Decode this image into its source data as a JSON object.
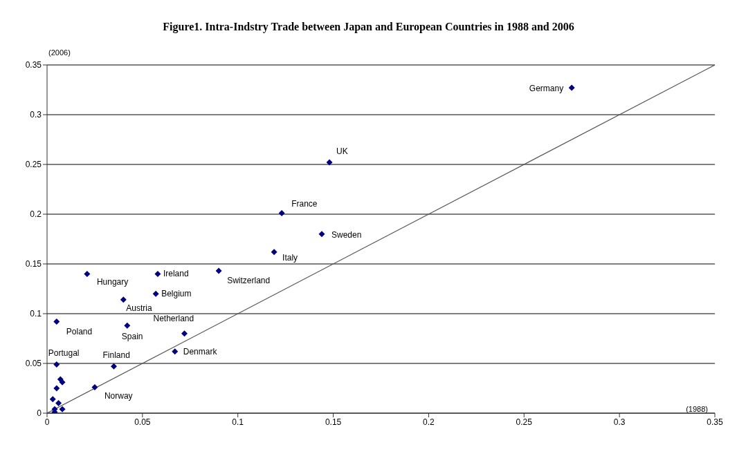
{
  "chart_data": {
    "type": "scatter",
    "title": "Figure1. Intra-Indstry Trade between Japan and European Countries in 1988 and 2006",
    "xlabel": "(1988)",
    "ylabel": "(2006)",
    "xlim": [
      0,
      0.35
    ],
    "xticks": [
      0,
      0.05,
      0.1,
      0.15,
      0.2,
      0.25,
      0.3,
      0.35
    ],
    "ylim": [
      0,
      0.35
    ],
    "yticks": [
      0,
      0.05,
      0.1,
      0.15,
      0.2,
      0.25,
      0.3,
      0.35
    ],
    "grid": "y",
    "legend": false,
    "marker": "diamond",
    "series": [
      {
        "color": "#000080",
        "x": [
          0.275,
          0.148,
          0.123,
          0.144,
          0.119,
          0.09,
          0.058,
          0.021,
          0.057,
          0.04,
          0.005,
          0.042,
          0.072,
          0.067,
          0.005,
          0.035,
          0.025,
          0.007,
          0.008,
          0.005,
          0.003,
          0.006,
          0.004,
          0.004,
          0.008
        ],
        "values": [
          0.327,
          0.252,
          0.201,
          0.18,
          0.162,
          0.143,
          0.14,
          0.14,
          0.12,
          0.114,
          0.092,
          0.088,
          0.08,
          0.062,
          0.049,
          0.047,
          0.026,
          0.034,
          0.031,
          0.025,
          0.014,
          0.01,
          0.004,
          0.001,
          0.004
        ]
      },
      {
        "type": "line",
        "color": "#555555",
        "x": [
          0,
          0.35
        ],
        "values": [
          0,
          0.35
        ],
        "marker": "none"
      }
    ],
    "annotations": [
      {
        "text": "Germany",
        "x": 0.275,
        "y": 0.327
      },
      {
        "text": "UK",
        "x": 0.148,
        "y": 0.252
      },
      {
        "text": "France",
        "x": 0.123,
        "y": 0.201
      },
      {
        "text": "Sweden",
        "x": 0.144,
        "y": 0.18
      },
      {
        "text": "Italy",
        "x": 0.119,
        "y": 0.162
      },
      {
        "text": "Switzerland",
        "x": 0.09,
        "y": 0.143
      },
      {
        "text": "Ireland",
        "x": 0.058,
        "y": 0.14
      },
      {
        "text": "Hungary",
        "x": 0.021,
        "y": 0.14
      },
      {
        "text": "Belgium",
        "x": 0.057,
        "y": 0.12
      },
      {
        "text": "Austria",
        "x": 0.04,
        "y": 0.114
      },
      {
        "text": "Poland",
        "x": 0.005,
        "y": 0.092
      },
      {
        "text": "Spain",
        "x": 0.042,
        "y": 0.088
      },
      {
        "text": "Netherland",
        "x": 0.072,
        "y": 0.08
      },
      {
        "text": "Denmark",
        "x": 0.067,
        "y": 0.062
      },
      {
        "text": "Portugal",
        "x": 0.005,
        "y": 0.049
      },
      {
        "text": "Finland",
        "x": 0.035,
        "y": 0.047
      },
      {
        "text": "Norway",
        "x": 0.025,
        "y": 0.026
      }
    ]
  }
}
